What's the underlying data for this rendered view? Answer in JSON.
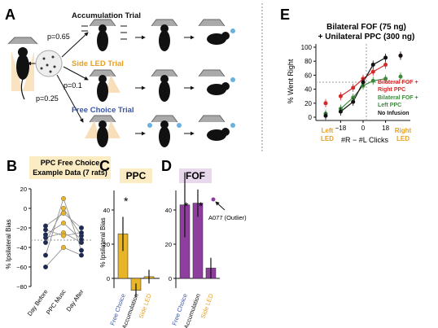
{
  "panelA": {
    "letter": "A",
    "trials": [
      {
        "label": "Accumulation Trial",
        "p": "p=0.65",
        "color": "#111111"
      },
      {
        "label": "Side LED Trial",
        "p": "p=0.1",
        "color": "#e8a020"
      },
      {
        "label": "Free Choice Trial",
        "p": "p=0.25",
        "color": "#3a55a6"
      }
    ]
  },
  "panelB": {
    "letter": "B",
    "title_line1": "PPC Free Choice",
    "title_line2": "Example Data (7 rats)",
    "ylabel": "% Ipsilateral Bias",
    "yticks": [
      "20",
      "0",
      "−20",
      "−40",
      "−60",
      "−80"
    ],
    "xticks": [
      "Day Before",
      "PPC Musc",
      "Day After"
    ]
  },
  "panelC": {
    "letter": "C",
    "title": "PPC",
    "ylabel": "% Ipsilateral Bias",
    "yticks": [
      "40",
      "20",
      "0"
    ],
    "bars": [
      {
        "label": "Free Choice",
        "value": 26,
        "err": 10,
        "color": "#e8b428",
        "label_color": "#3a55a6"
      },
      {
        "label": "Accumulation",
        "value": -7,
        "err": 4,
        "color": "#e8b428",
        "label_color": "#111111"
      },
      {
        "label": "Side LED",
        "value": 1,
        "err": 4,
        "color": "#e8b428",
        "label_color": "#e8a020"
      }
    ],
    "sig": "*"
  },
  "panelD": {
    "letter": "D",
    "title": "FOF",
    "yticks": [
      "40",
      "20",
      "0"
    ],
    "bars": [
      {
        "label": "Free Choice",
        "value": 43,
        "err": 19,
        "color": "#8e3f9e",
        "label_color": "#3a55a6"
      },
      {
        "label": "Accumulation",
        "value": 44,
        "err": 8,
        "color": "#8e3f9e",
        "label_color": "#111111"
      },
      {
        "label": "Side LED",
        "value": 6,
        "err": 6,
        "color": "#8e3f9e",
        "label_color": "#e8a020"
      }
    ],
    "sig": [
      "*",
      "*"
    ],
    "outlier_label": "A077 (Outlier)"
  },
  "panelE": {
    "letter": "E",
    "title_line1": "Bilateral FOF (75 ng)",
    "title_line2": "+ Unilateral PPC (300 ng)",
    "ylabel": "% Went Right",
    "xlabel": "#R − #L Clicks",
    "yticks": [
      "100",
      "80",
      "60",
      "40",
      "20",
      "0"
    ],
    "xticks": [
      "−18",
      "0",
      "18"
    ],
    "left_end_line1": "Left",
    "left_end_line2": "LED",
    "right_end_line1": "Right",
    "right_end_line2": "LED",
    "legend": [
      {
        "line1": "Bilateral FOF +",
        "line2": "Right PPC",
        "color": "#d42a2a"
      },
      {
        "line1": "Bilateral FOF +",
        "line2": "Left PPC",
        "color": "#3c8c3c"
      },
      {
        "line1": "No Infusion",
        "line2": "",
        "color": "#111111"
      }
    ]
  },
  "chart_data": [
    {
      "type": "line",
      "panel": "B",
      "x": [
        "Day Before",
        "PPC Musc",
        "Day After"
      ],
      "ylabel": "% Ipsilateral Bias",
      "ylim": [
        -80,
        20
      ],
      "series": [
        {
          "values": [
            -60,
            -40,
            -48
          ]
        },
        {
          "values": [
            -48,
            10,
            -43
          ]
        },
        {
          "values": [
            -35,
            0,
            -28
          ]
        },
        {
          "values": [
            -30,
            -25,
            -35
          ]
        },
        {
          "values": [
            -27,
            -15,
            -32
          ]
        },
        {
          "values": [
            -22,
            -28,
            -25
          ]
        },
        {
          "values": [
            -18,
            -5,
            -20
          ]
        }
      ]
    },
    {
      "type": "bar",
      "panel": "C",
      "categories": [
        "Free Choice",
        "Accumulation",
        "Side LED"
      ],
      "values": [
        26,
        -7,
        1
      ],
      "errors": [
        10,
        4,
        4
      ],
      "ylabel": "% Ipsilateral Bias",
      "ylim": [
        -10,
        50
      ]
    },
    {
      "type": "bar",
      "panel": "D",
      "categories": [
        "Free Choice",
        "Accumulation",
        "Side LED"
      ],
      "values": [
        43,
        44,
        6
      ],
      "errors": [
        19,
        8,
        6
      ],
      "ylim": [
        -10,
        50
      ]
    },
    {
      "type": "scatter",
      "panel": "E",
      "xlabel": "#R − #L Clicks",
      "ylabel": "% Went Right",
      "xlim": [
        -36,
        36
      ],
      "ylim": [
        0,
        100
      ],
      "series": [
        {
          "name": "Bilateral FOF + Right PPC",
          "x": [
            -30,
            -18,
            -8,
            0,
            8,
            18,
            30
          ],
          "y": [
            20,
            30,
            42,
            55,
            65,
            75,
            88
          ]
        },
        {
          "name": "Bilateral FOF + Left PPC",
          "x": [
            -30,
            -18,
            -8,
            0,
            8,
            18,
            30
          ],
          "y": [
            5,
            12,
            28,
            45,
            52,
            55,
            58
          ]
        },
        {
          "name": "No Infusion",
          "x": [
            -30,
            -18,
            -8,
            0,
            8,
            18,
            30
          ],
          "y": [
            2,
            8,
            22,
            50,
            75,
            85,
            88
          ]
        }
      ]
    }
  ]
}
